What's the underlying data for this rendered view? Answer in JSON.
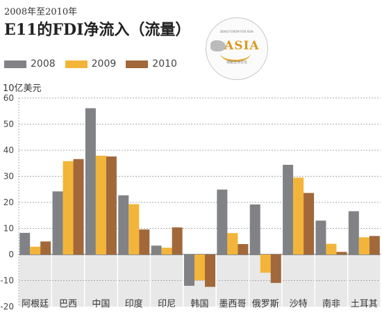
{
  "header": {
    "subtitle": "2008年至2010年",
    "title": "E11的FDI净流入（流量）",
    "unit_label": "10亿美元"
  },
  "logo": {
    "top_text": "BOAO FORUM FOR ASIA",
    "main_text": "ASIA",
    "bottom_text": "博鳌亚洲论坛"
  },
  "colors": {
    "2008": "#808285",
    "2009": "#f2b53a",
    "2010": "#a2683a",
    "below_zero_bg": "#e8e8e8",
    "grid": "#a7a9ac"
  },
  "chart_data": {
    "type": "bar",
    "title": "E11的FDI净流入（流量）",
    "subtitle": "2008年至2010年",
    "ylabel": "10亿美元",
    "xlabel": "",
    "ylim": [
      -20,
      60
    ],
    "yticks": [
      -20,
      -10,
      0,
      10,
      20,
      30,
      40,
      50,
      60
    ],
    "grid": true,
    "legend_position": "top-left",
    "categories": [
      "阿根廷",
      "巴西",
      "中国",
      "印度",
      "印尼",
      "韩国",
      "墨西哥",
      "俄罗斯",
      "沙特",
      "南非",
      "土耳其"
    ],
    "series": [
      {
        "name": "2008",
        "values": [
          8.3,
          24.2,
          56.1,
          22.7,
          3.4,
          -12.0,
          24.9,
          19.2,
          34.4,
          13.0,
          16.6
        ]
      },
      {
        "name": "2009",
        "values": [
          3.0,
          35.8,
          37.9,
          19.3,
          2.6,
          -9.9,
          8.2,
          -7.0,
          29.5,
          4.1,
          6.6
        ]
      },
      {
        "name": "2010",
        "values": [
          5.0,
          36.6,
          37.6,
          9.6,
          10.4,
          -12.4,
          4.0,
          -10.9,
          23.6,
          1.0,
          7.1
        ]
      }
    ]
  }
}
